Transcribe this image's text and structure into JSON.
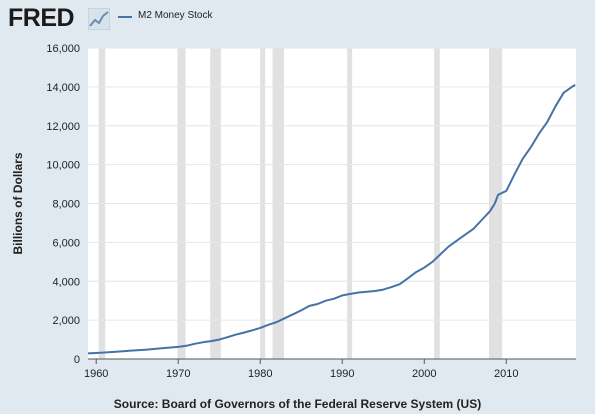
{
  "header": {
    "logo_text": "FRED",
    "logo_icon": "line-graph-icon"
  },
  "footer": {
    "source": "Source: Board of Governors of the Federal Reserve System (US)"
  },
  "chart_data": {
    "type": "line",
    "title": "",
    "xlabel": "",
    "ylabel": "Billions of Dollars",
    "xlim": [
      1959,
      2018.5
    ],
    "ylim": [
      0,
      16000
    ],
    "x_ticks": [
      1960,
      1970,
      1980,
      1990,
      2000,
      2010
    ],
    "x_tick_labels": [
      "1960",
      "1970",
      "1980",
      "1990",
      "2000",
      "2010"
    ],
    "y_ticks": [
      0,
      2000,
      4000,
      6000,
      8000,
      10000,
      12000,
      14000,
      16000
    ],
    "y_tick_labels": [
      "0",
      "2,000",
      "4,000",
      "6,000",
      "8,000",
      "10,000",
      "12,000",
      "14,000",
      "16,000"
    ],
    "grid": true,
    "legend_position": "top-left",
    "plot_background": "#ffffff",
    "line_color": "#4572a7",
    "recession_color": "#e1e1e1",
    "recessions": [
      [
        1960.3,
        1961.1
      ],
      [
        1969.9,
        1970.9
      ],
      [
        1973.9,
        1975.2
      ],
      [
        1980.0,
        1980.6
      ],
      [
        1981.5,
        1982.9
      ],
      [
        1990.6,
        1991.2
      ],
      [
        2001.2,
        2001.9
      ],
      [
        2007.9,
        2009.5
      ]
    ],
    "series": [
      {
        "name": "M2 Money Stock",
        "x": [
          1959.0,
          1960.0,
          1962.0,
          1964.0,
          1966.0,
          1968.0,
          1970.0,
          1971.0,
          1972.0,
          1973.0,
          1974.0,
          1975.0,
          1976.0,
          1977.0,
          1978.0,
          1979.0,
          1980.0,
          1981.0,
          1982.0,
          1983.0,
          1984.0,
          1985.0,
          1986.0,
          1987.0,
          1988.0,
          1989.0,
          1990.0,
          1991.0,
          1992.0,
          1993.0,
          1994.0,
          1995.0,
          1996.0,
          1997.0,
          1998.0,
          1999.0,
          2000.0,
          2001.0,
          2002.0,
          2003.0,
          2004.0,
          2005.0,
          2006.0,
          2007.0,
          2008.0,
          2008.6,
          2009.0,
          2010.0,
          2011.0,
          2012.0,
          2013.0,
          2014.0,
          2015.0,
          2016.0,
          2017.0,
          2018.0,
          2018.4
        ],
        "values": [
          290,
          310,
          360,
          420,
          480,
          550,
          620,
          680,
          780,
          860,
          920,
          1000,
          1120,
          1250,
          1360,
          1470,
          1600,
          1760,
          1900,
          2100,
          2300,
          2500,
          2730,
          2830,
          3000,
          3100,
          3270,
          3350,
          3420,
          3460,
          3500,
          3570,
          3700,
          3850,
          4150,
          4470,
          4700,
          5000,
          5400,
          5800,
          6100,
          6400,
          6700,
          7150,
          7600,
          8000,
          8450,
          8650,
          9500,
          10300,
          10900,
          11600,
          12200,
          13000,
          13700,
          14000,
          14100
        ]
      }
    ]
  }
}
